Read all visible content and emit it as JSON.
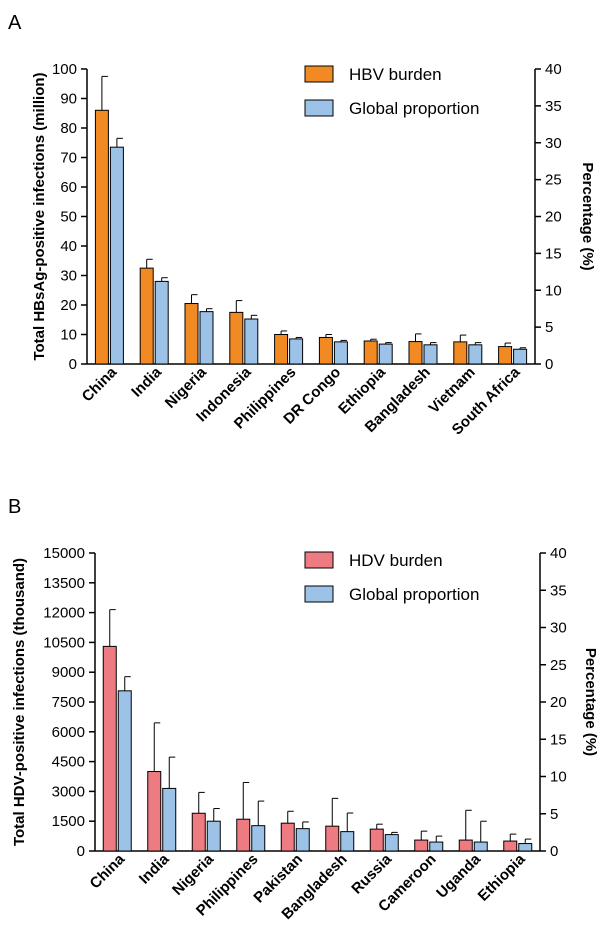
{
  "chart_data": [
    {
      "type": "bar",
      "panel": "A",
      "categories": [
        "China",
        "India",
        "Nigeria",
        "Indonesia",
        "Philippines",
        "DR Congo",
        "Ethiopia",
        "Bangladesh",
        "Vietnam",
        "South Africa"
      ],
      "ylabel": "Total HBsAg-positive infections (million)",
      "y2label": "Percentage (%)",
      "ylim": [
        0,
        100
      ],
      "y2lim": [
        0,
        40
      ],
      "yticks": [
        "0",
        "10",
        "20",
        "30",
        "40",
        "50",
        "60",
        "70",
        "80",
        "90",
        "100"
      ],
      "y2ticks": [
        "0",
        "5",
        "10",
        "15",
        "20",
        "25",
        "30",
        "35",
        "40"
      ],
      "legend_position": "top-right",
      "series": [
        {
          "name": "HBV burden",
          "axis": "left",
          "color": "#f28a24",
          "values": [
            86,
            32.5,
            20.5,
            17.5,
            10,
            9,
            7.8,
            7.6,
            7.5,
            5.9
          ],
          "error": [
            11.5,
            3,
            3,
            4,
            1.2,
            1,
            0.6,
            2.6,
            2.3,
            1.2
          ]
        },
        {
          "name": "Global proportion",
          "axis": "right",
          "color": "#9cc2e8",
          "values": [
            29.4,
            11.2,
            7.1,
            6.1,
            3.4,
            3.0,
            2.7,
            2.6,
            2.6,
            2.0
          ],
          "error": [
            1.2,
            0.5,
            0.4,
            0.5,
            0.2,
            0.2,
            0.2,
            0.3,
            0.3,
            0.2
          ]
        }
      ]
    },
    {
      "type": "bar",
      "panel": "B",
      "categories": [
        "China",
        "India",
        "Nigeria",
        "Philippines",
        "Pakistan",
        "Bangladesh",
        "Russia",
        "Cameroon",
        "Uganda",
        "Ethiopia"
      ],
      "ylabel": "Total HDV-positive infections (thousand)",
      "y2label": "Percentage (%)",
      "ylim": [
        0,
        15000
      ],
      "y2lim": [
        0,
        40
      ],
      "yticks": [
        "0",
        "1500",
        "3000",
        "4500",
        "6000",
        "7500",
        "9000",
        "10500",
        "12000",
        "13500",
        "15000"
      ],
      "y2ticks": [
        "0",
        "5",
        "10",
        "15",
        "20",
        "25",
        "30",
        "35",
        "40"
      ],
      "legend_position": "top-right",
      "series": [
        {
          "name": "HDV burden",
          "axis": "left",
          "color": "#ef7b82",
          "values": [
            10300,
            4000,
            1900,
            1600,
            1400,
            1250,
            1100,
            550,
            550,
            500
          ],
          "error": [
            1850,
            2450,
            1050,
            1850,
            600,
            1400,
            250,
            450,
            1500,
            350
          ]
        },
        {
          "name": "Global proportion",
          "axis": "right",
          "color": "#9cc2e8",
          "values": [
            21.5,
            8.4,
            4.0,
            3.4,
            3.0,
            2.6,
            2.2,
            1.2,
            1.2,
            1.0
          ],
          "error": [
            1.9,
            4.2,
            1.7,
            3.3,
            0.9,
            2.5,
            0.3,
            0.8,
            2.8,
            0.6
          ]
        }
      ]
    }
  ]
}
